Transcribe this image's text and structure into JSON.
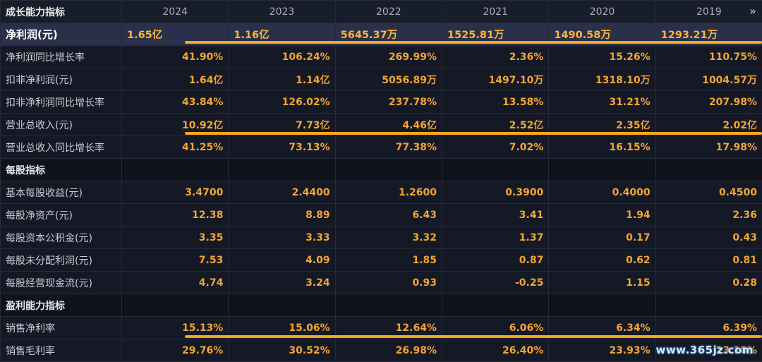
{
  "header": {
    "title": "成长能力指标",
    "years": [
      "2024",
      "2023",
      "2022",
      "2021",
      "2020",
      "2019"
    ],
    "next_icon": "double-chevron-right-icon"
  },
  "rows": [
    {
      "type": "highlight",
      "label": "净利润(元)",
      "values": [
        "1.65亿",
        "1.16亿",
        "5645.37万",
        "1525.81万",
        "1490.58万",
        "1293.21万"
      ]
    },
    {
      "type": "data",
      "label": "净利润同比增长率",
      "values": [
        "41.90%",
        "106.24%",
        "269.99%",
        "2.36%",
        "15.26%",
        "110.75%"
      ]
    },
    {
      "type": "data",
      "label": "扣非净利润(元)",
      "values": [
        "1.64亿",
        "1.14亿",
        "5056.89万",
        "1497.10万",
        "1318.10万",
        "1004.57万"
      ]
    },
    {
      "type": "data",
      "label": "扣非净利润同比增长率",
      "values": [
        "43.84%",
        "126.02%",
        "237.78%",
        "13.58%",
        "31.21%",
        "207.98%"
      ]
    },
    {
      "type": "data",
      "label": "营业总收入(元)",
      "values": [
        "10.92亿",
        "7.73亿",
        "4.46亿",
        "2.52亿",
        "2.35亿",
        "2.02亿"
      ]
    },
    {
      "type": "data",
      "label": "营业总收入同比增长率",
      "values": [
        "41.25%",
        "73.13%",
        "77.38%",
        "7.02%",
        "16.15%",
        "17.98%"
      ]
    },
    {
      "type": "section",
      "label": "每股指标",
      "values": [
        "",
        "",
        "",
        "",
        "",
        ""
      ]
    },
    {
      "type": "data",
      "label": "基本每股收益(元)",
      "values": [
        "3.4700",
        "2.4400",
        "1.2600",
        "0.3900",
        "0.4000",
        "0.4500"
      ]
    },
    {
      "type": "data",
      "label": "每股净资产(元)",
      "values": [
        "12.38",
        "8.89",
        "6.43",
        "3.41",
        "1.94",
        "2.36"
      ]
    },
    {
      "type": "data",
      "label": "每股资本公积金(元)",
      "values": [
        "3.35",
        "3.33",
        "3.32",
        "1.37",
        "0.17",
        "0.43"
      ]
    },
    {
      "type": "data",
      "label": "每股未分配利润(元)",
      "values": [
        "7.53",
        "4.09",
        "1.85",
        "0.87",
        "0.62",
        "0.81"
      ]
    },
    {
      "type": "data",
      "label": "每股经营现金流(元)",
      "values": [
        "4.74",
        "3.24",
        "0.93",
        "-0.25",
        "1.15",
        "0.28"
      ]
    },
    {
      "type": "section",
      "label": "盈利能力指标",
      "values": [
        "",
        "",
        "",
        "",
        "",
        ""
      ]
    },
    {
      "type": "data",
      "label": "销售净利率",
      "values": [
        "15.13%",
        "15.06%",
        "12.64%",
        "6.06%",
        "6.34%",
        "6.39%"
      ]
    },
    {
      "type": "data",
      "label": "销售毛利率",
      "values": [
        "29.76%",
        "30.52%",
        "26.98%",
        "26.40%",
        "23.93%",
        "23.18%"
      ]
    }
  ],
  "watermark": "www.365jz.com",
  "colors": {
    "value": "#f2a534",
    "highlight_row": "#2a3049",
    "underline": "#f5a623"
  }
}
